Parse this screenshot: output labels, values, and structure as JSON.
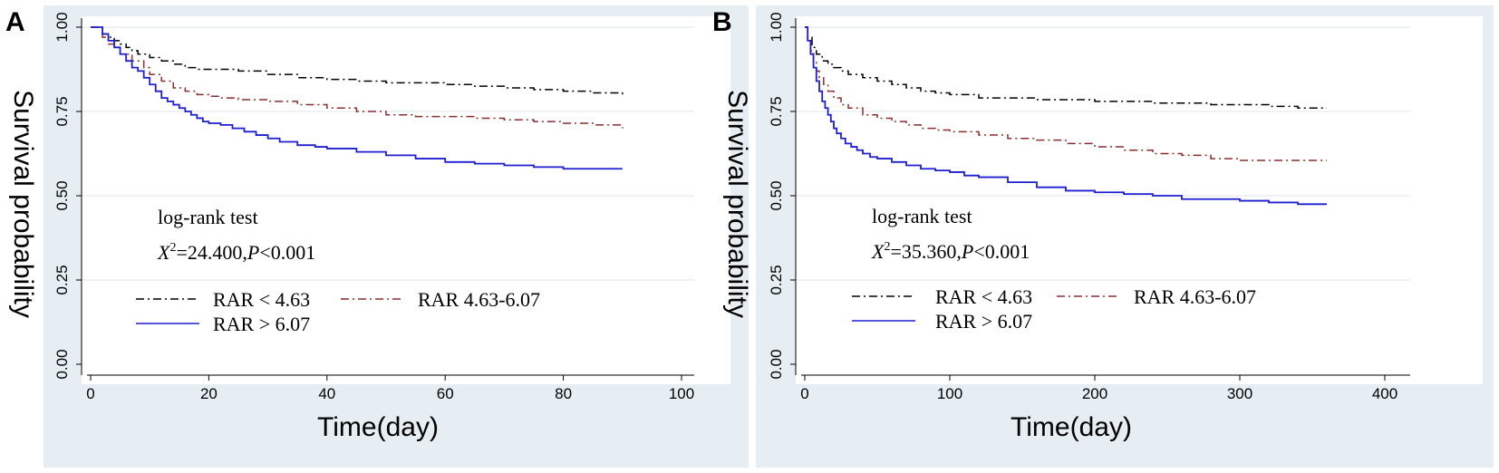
{
  "chart_data": [
    {
      "panel": "A",
      "type": "line",
      "title": "",
      "xlabel": "Time(day)",
      "ylabel": "Survival probability",
      "xlim": [
        0,
        100
      ],
      "ylim": [
        0,
        1
      ],
      "xticks": [
        0,
        20,
        40,
        60,
        80,
        100
      ],
      "yticks": [
        0.0,
        0.25,
        0.5,
        0.75,
        1.0
      ],
      "xtick_labels": [
        "0",
        "20",
        "40",
        "60",
        "80",
        "100"
      ],
      "ytick_labels": [
        "0.00",
        "0.25",
        "0.50",
        "0.75",
        "1.00"
      ],
      "grid": true,
      "annotation": {
        "line1": "log-rank test",
        "chi_symbol": "X",
        "chi_sup": "2",
        "stat": "=24.400,",
        "p_symbol": "P",
        "p_value": "<0.001"
      },
      "series": [
        {
          "name": "RAR < 4.63",
          "color": "#000000",
          "dash": "dashdot",
          "x": [
            0,
            2,
            3,
            4,
            5,
            6,
            7,
            8,
            10,
            12,
            14,
            16,
            18,
            20,
            25,
            30,
            35,
            40,
            45,
            50,
            55,
            60,
            65,
            70,
            75,
            80,
            85,
            90
          ],
          "y": [
            1.0,
            0.98,
            0.97,
            0.96,
            0.95,
            0.94,
            0.93,
            0.92,
            0.91,
            0.9,
            0.89,
            0.88,
            0.875,
            0.875,
            0.87,
            0.86,
            0.85,
            0.845,
            0.84,
            0.835,
            0.835,
            0.83,
            0.825,
            0.82,
            0.815,
            0.81,
            0.805,
            0.8
          ]
        },
        {
          "name": "RAR 4.63-6.07",
          "color": "#8B2E2E",
          "dash": "dashdot",
          "x": [
            0,
            2,
            3,
            4,
            5,
            7,
            9,
            10,
            12,
            14,
            16,
            18,
            20,
            22,
            25,
            30,
            35,
            40,
            45,
            50,
            55,
            60,
            65,
            70,
            75,
            80,
            85,
            90
          ],
          "y": [
            1.0,
            0.97,
            0.95,
            0.94,
            0.92,
            0.9,
            0.88,
            0.86,
            0.84,
            0.82,
            0.81,
            0.8,
            0.795,
            0.79,
            0.785,
            0.78,
            0.77,
            0.76,
            0.75,
            0.74,
            0.735,
            0.735,
            0.73,
            0.725,
            0.72,
            0.715,
            0.71,
            0.7
          ]
        },
        {
          "name": "RAR > 6.07",
          "color": "#1f1fd1",
          "dash": "solid",
          "x": [
            0,
            2,
            3,
            4,
            5,
            6,
            7,
            8,
            9,
            10,
            11,
            12,
            13,
            14,
            15,
            16,
            17,
            18,
            19,
            20,
            22,
            24,
            26,
            28,
            30,
            32,
            35,
            38,
            40,
            45,
            50,
            55,
            60,
            65,
            70,
            75,
            80,
            85,
            90
          ],
          "y": [
            1.0,
            0.98,
            0.96,
            0.94,
            0.92,
            0.9,
            0.88,
            0.87,
            0.85,
            0.83,
            0.81,
            0.79,
            0.78,
            0.77,
            0.76,
            0.75,
            0.74,
            0.73,
            0.72,
            0.715,
            0.71,
            0.7,
            0.69,
            0.68,
            0.67,
            0.66,
            0.65,
            0.645,
            0.64,
            0.63,
            0.62,
            0.61,
            0.6,
            0.595,
            0.59,
            0.585,
            0.58,
            0.58,
            0.58
          ]
        }
      ]
    },
    {
      "panel": "B",
      "type": "line",
      "title": "",
      "xlabel": "Time(day)",
      "ylabel": "Survival probability",
      "xlim": [
        0,
        400
      ],
      "ylim": [
        0,
        1
      ],
      "xticks": [
        0,
        100,
        200,
        300,
        400
      ],
      "yticks": [
        0.0,
        0.25,
        0.5,
        0.75,
        1.0
      ],
      "xtick_labels": [
        "0",
        "100",
        "200",
        "300",
        "400"
      ],
      "ytick_labels": [
        "0.00",
        "0.25",
        "0.50",
        "0.75",
        "1.00"
      ],
      "grid": true,
      "annotation": {
        "line1": "log-rank test",
        "chi_symbol": "X",
        "chi_sup": "2",
        "stat": "=35.360,",
        "p_symbol": "P",
        "p_value": "<0.001"
      },
      "series": [
        {
          "name": "RAR < 4.63",
          "color": "#000000",
          "dash": "dashdot",
          "x": [
            0,
            2,
            5,
            8,
            12,
            16,
            20,
            25,
            30,
            40,
            50,
            60,
            70,
            80,
            90,
            100,
            120,
            140,
            160,
            180,
            200,
            220,
            240,
            260,
            280,
            300,
            320,
            340,
            360
          ],
          "y": [
            1.0,
            0.97,
            0.94,
            0.92,
            0.9,
            0.89,
            0.88,
            0.87,
            0.86,
            0.85,
            0.84,
            0.83,
            0.82,
            0.81,
            0.805,
            0.8,
            0.79,
            0.79,
            0.785,
            0.785,
            0.78,
            0.78,
            0.775,
            0.775,
            0.77,
            0.77,
            0.765,
            0.76,
            0.76
          ]
        },
        {
          "name": "RAR 4.63-6.07",
          "color": "#8B2E2E",
          "dash": "dashdot",
          "x": [
            0,
            2,
            4,
            6,
            8,
            10,
            13,
            16,
            20,
            25,
            30,
            40,
            50,
            60,
            70,
            80,
            90,
            100,
            120,
            140,
            160,
            180,
            200,
            220,
            240,
            260,
            280,
            300,
            320,
            340,
            360
          ],
          "y": [
            1.0,
            0.96,
            0.93,
            0.9,
            0.87,
            0.85,
            0.83,
            0.81,
            0.79,
            0.77,
            0.76,
            0.74,
            0.73,
            0.72,
            0.71,
            0.7,
            0.695,
            0.69,
            0.68,
            0.67,
            0.665,
            0.655,
            0.645,
            0.635,
            0.625,
            0.62,
            0.61,
            0.605,
            0.605,
            0.605,
            0.605
          ]
        },
        {
          "name": "RAR > 6.07",
          "color": "#1f1fd1",
          "dash": "solid",
          "x": [
            0,
            2,
            4,
            6,
            8,
            10,
            12,
            14,
            16,
            18,
            20,
            22,
            25,
            28,
            32,
            36,
            40,
            45,
            50,
            60,
            70,
            80,
            90,
            100,
            110,
            120,
            140,
            160,
            180,
            200,
            220,
            240,
            260,
            280,
            300,
            320,
            340,
            360
          ],
          "y": [
            1.0,
            0.96,
            0.92,
            0.88,
            0.84,
            0.81,
            0.78,
            0.76,
            0.74,
            0.72,
            0.7,
            0.685,
            0.67,
            0.655,
            0.645,
            0.635,
            0.625,
            0.615,
            0.61,
            0.6,
            0.59,
            0.58,
            0.575,
            0.57,
            0.56,
            0.555,
            0.54,
            0.525,
            0.515,
            0.51,
            0.505,
            0.5,
            0.49,
            0.49,
            0.485,
            0.48,
            0.475,
            0.475
          ]
        }
      ]
    }
  ]
}
